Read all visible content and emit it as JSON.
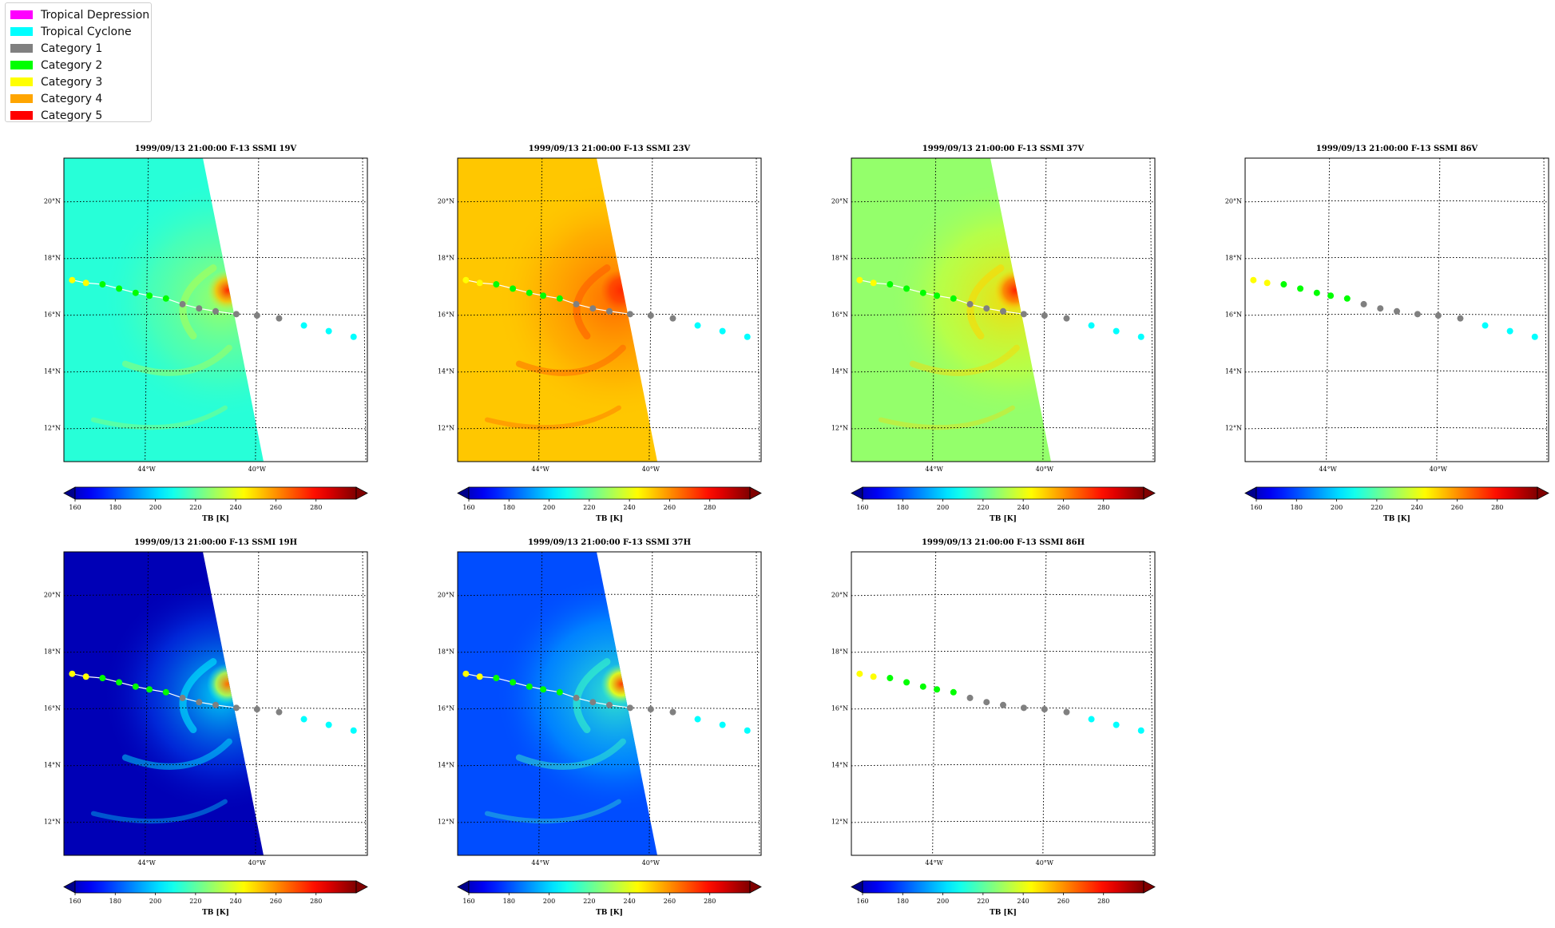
{
  "legend": {
    "items": [
      {
        "label": "Tropical Depression",
        "color": "#ff00ff"
      },
      {
        "label": "Tropical Cyclone",
        "color": "#00ffff"
      },
      {
        "label": "Category 1",
        "color": "#808080"
      },
      {
        "label": "Category 2",
        "color": "#00ff00"
      },
      {
        "label": "Category 3",
        "color": "#ffff00"
      },
      {
        "label": "Category 4",
        "color": "#ffa500"
      },
      {
        "label": "Category 5",
        "color": "#ff0000"
      }
    ]
  },
  "chart_data": {
    "type": "heatmap",
    "colormap": "jet",
    "colorbar": {
      "label": "TB [K]",
      "range": [
        150,
        300
      ],
      "ticks": [
        160,
        180,
        200,
        220,
        240,
        260,
        280
      ],
      "extend": "both"
    },
    "map": {
      "lat_ticks": [
        "12°N",
        "14°N",
        "16°N",
        "18°N",
        "20°N"
      ],
      "lon_ticks": [
        "44°W",
        "40°W"
      ],
      "lat_range": [
        10.8,
        21.5
      ],
      "lon_range": [
        -47,
        -36
      ]
    },
    "track": {
      "points": [
        {
          "lon": -46.7,
          "lat": 17.2,
          "cat": "Category 3"
        },
        {
          "lon": -46.2,
          "lat": 17.1,
          "cat": "Category 3"
        },
        {
          "lon": -45.6,
          "lat": 17.05,
          "cat": "Category 2"
        },
        {
          "lon": -45.0,
          "lat": 16.9,
          "cat": "Category 2"
        },
        {
          "lon": -44.4,
          "lat": 16.75,
          "cat": "Category 2"
        },
        {
          "lon": -43.9,
          "lat": 16.65,
          "cat": "Category 2"
        },
        {
          "lon": -43.3,
          "lat": 16.55,
          "cat": "Category 2"
        },
        {
          "lon": -42.7,
          "lat": 16.35,
          "cat": "Category 1"
        },
        {
          "lon": -42.1,
          "lat": 16.2,
          "cat": "Category 1"
        },
        {
          "lon": -41.5,
          "lat": 16.1,
          "cat": "Category 1"
        },
        {
          "lon": -40.75,
          "lat": 16.0,
          "cat": "Category 1"
        },
        {
          "lon": -40.0,
          "lat": 15.95,
          "cat": "Category 1"
        },
        {
          "lon": -39.2,
          "lat": 15.85,
          "cat": "Category 1"
        },
        {
          "lon": -38.3,
          "lat": 15.6,
          "cat": "Tropical Cyclone"
        },
        {
          "lon": -37.4,
          "lat": 15.4,
          "cat": "Tropical Cyclone"
        },
        {
          "lon": -36.5,
          "lat": 15.2,
          "cat": "Tropical Cyclone"
        }
      ]
    },
    "panels": [
      {
        "title": "1999/09/13 21:00:00  F-13 SSMI 19V",
        "has_data": true,
        "background_tb": 212,
        "eye_tb": 275,
        "band_tb": 232
      },
      {
        "title": "1999/09/13 21:00:00  F-13 SSMI 23V",
        "has_data": true,
        "background_tb": 252,
        "eye_tb": 275,
        "band_tb": 268
      },
      {
        "title": "1999/09/13 21:00:00  F-13 SSMI 37V",
        "has_data": true,
        "background_tb": 228,
        "eye_tb": 276,
        "band_tb": 250
      },
      {
        "title": "1999/09/13 21:00:00  F-13 SSMI 86V",
        "has_data": false
      },
      {
        "title": "1999/09/13 21:00:00  F-13 SSMI 19H",
        "has_data": true,
        "background_tb": 158,
        "eye_tb": 265,
        "band_tb": 205
      },
      {
        "title": "1999/09/13 21:00:00  F-13 SSMI 37H",
        "has_data": true,
        "background_tb": 180,
        "eye_tb": 272,
        "band_tb": 215
      },
      {
        "title": "1999/09/13 21:00:00  F-13 SSMI 86H",
        "has_data": false
      }
    ]
  }
}
